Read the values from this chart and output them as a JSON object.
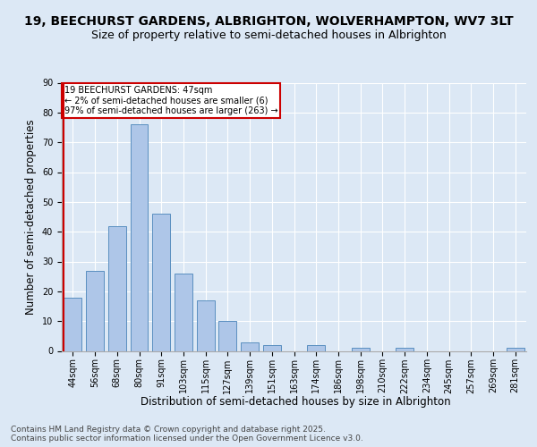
{
  "title1": "19, BEECHURST GARDENS, ALBRIGHTON, WOLVERHAMPTON, WV7 3LT",
  "title2": "Size of property relative to semi-detached houses in Albrighton",
  "xlabel": "Distribution of semi-detached houses by size in Albrighton",
  "ylabel": "Number of semi-detached properties",
  "categories": [
    "44sqm",
    "56sqm",
    "68sqm",
    "80sqm",
    "91sqm",
    "103sqm",
    "115sqm",
    "127sqm",
    "139sqm",
    "151sqm",
    "163sqm",
    "174sqm",
    "186sqm",
    "198sqm",
    "210sqm",
    "222sqm",
    "234sqm",
    "245sqm",
    "257sqm",
    "269sqm",
    "281sqm"
  ],
  "values": [
    18,
    27,
    42,
    76,
    46,
    26,
    17,
    10,
    3,
    2,
    0,
    2,
    0,
    1,
    0,
    1,
    0,
    0,
    0,
    0,
    1
  ],
  "bar_color": "#aec6e8",
  "bar_edge_color": "#5a8fc0",
  "highlight_color": "#cc0000",
  "annotation_text": "19 BEECHURST GARDENS: 47sqm\n← 2% of semi-detached houses are smaller (6)\n97% of semi-detached houses are larger (263) →",
  "annotation_box_color": "#ffffff",
  "annotation_box_edge": "#cc0000",
  "ylim": [
    0,
    90
  ],
  "yticks": [
    0,
    10,
    20,
    30,
    40,
    50,
    60,
    70,
    80,
    90
  ],
  "footer_text": "Contains HM Land Registry data © Crown copyright and database right 2025.\nContains public sector information licensed under the Open Government Licence v3.0.",
  "bg_color": "#dce8f5",
  "plot_bg_color": "#dce8f5",
  "title1_fontsize": 10,
  "title2_fontsize": 9,
  "tick_fontsize": 7,
  "ylabel_fontsize": 8.5,
  "xlabel_fontsize": 8.5,
  "footer_fontsize": 6.5
}
